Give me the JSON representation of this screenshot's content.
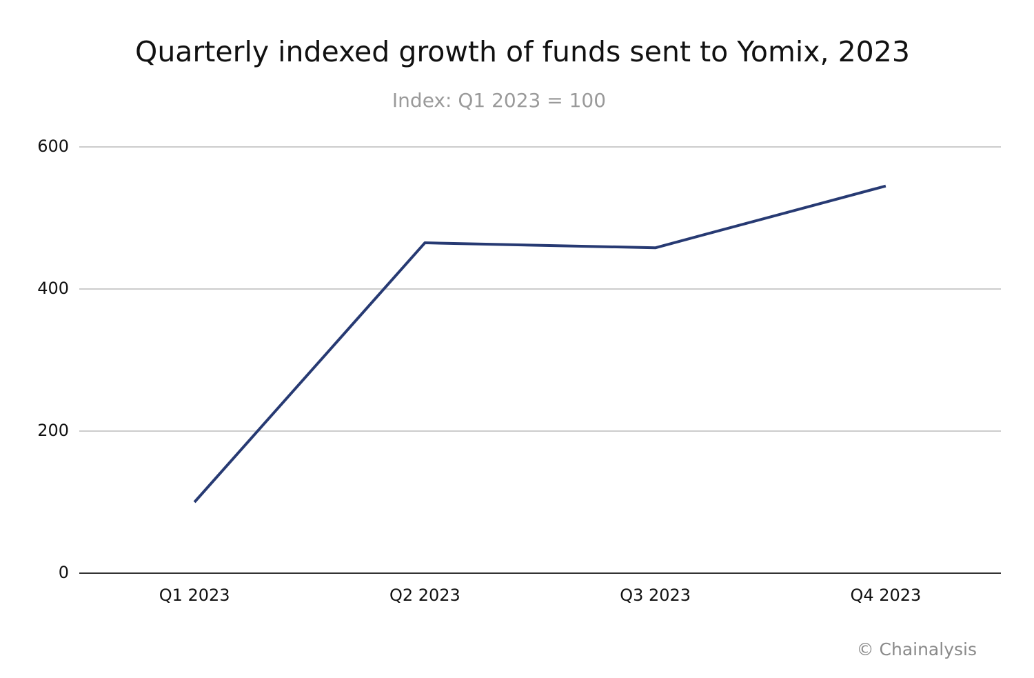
{
  "chart_data": {
    "type": "line",
    "title": "Quarterly indexed growth of funds sent to Yomix, 2023",
    "subtitle": "Index: Q1 2023 = 100",
    "source": "© Chainalysis",
    "categories": [
      "Q1 2023",
      "Q2 2023",
      "Q3 2023",
      "Q4 2023"
    ],
    "series": [
      {
        "name": "Index",
        "color": "#273a73",
        "values": [
          100,
          465,
          458,
          545
        ]
      }
    ],
    "ylim": [
      0,
      600
    ],
    "yticks": [
      0,
      200,
      400,
      600
    ],
    "grid": true
  }
}
